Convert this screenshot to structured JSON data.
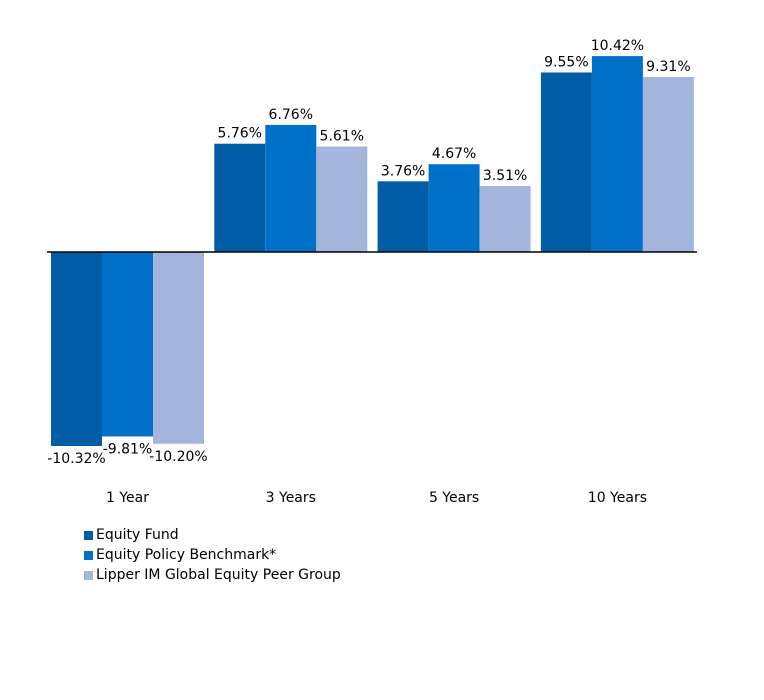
{
  "chart_data": {
    "type": "bar",
    "title": "",
    "xlabel": "",
    "ylabel": "",
    "ylim": [
      -11,
      12
    ],
    "categories": [
      "1 Year",
      "3 Years",
      "5 Years",
      "10 Years"
    ],
    "series": [
      {
        "name": "Equity Fund",
        "color": "#005DA6",
        "values": [
          -10.32,
          5.76,
          3.76,
          9.55
        ],
        "labels": [
          "-10.32%",
          "5.76%",
          "3.76%",
          "9.55%"
        ]
      },
      {
        "name": "Equity Policy Benchmark*",
        "color": "#0070C8",
        "values": [
          -9.81,
          6.76,
          4.67,
          10.42
        ],
        "labels": [
          "-9.81%",
          "6.76%",
          "4.67%",
          "10.42%"
        ]
      },
      {
        "name": "Lipper IM Global Equity Peer Group",
        "color": "#A4B5DB",
        "values": [
          -10.2,
          5.61,
          3.51,
          9.31
        ],
        "labels": [
          "-10.20%",
          "5.61%",
          "3.51%",
          "9.31%"
        ]
      }
    ],
    "grid": false,
    "legend_position": "bottom-left"
  }
}
